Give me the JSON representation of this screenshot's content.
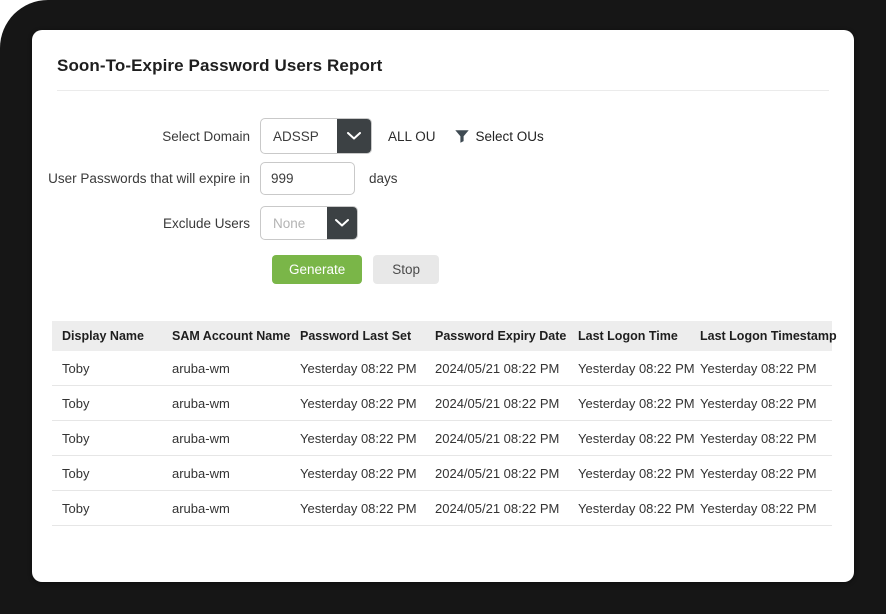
{
  "colors": {
    "frame_bg": "#161616",
    "card_bg": "#ffffff",
    "accent_green": "#7ab648",
    "control_dark": "#3c4144",
    "table_header_bg": "#ededed",
    "border_light": "#c9c9c9",
    "row_divider": "#e6e6e6",
    "placeholder_text": "#b3b3b3"
  },
  "report": {
    "title": "Soon-To-Expire Password Users Report"
  },
  "form": {
    "domain_label": "Select Domain",
    "domain_value": "ADSSP",
    "all_ou_label": "ALL OU",
    "select_ous_label": "Select OUs",
    "expire_label": "User Passwords that will expire in",
    "expire_value": "999",
    "expire_suffix": "days",
    "exclude_label": "Exclude Users",
    "exclude_placeholder": "None",
    "generate_label": "Generate",
    "stop_label": "Stop"
  },
  "table": {
    "columns": [
      "Display Name",
      "SAM Account Name",
      "Password Last Set",
      "Password Expiry Date",
      "Last Logon Time",
      "Last Logon Timestamp"
    ],
    "rows": [
      [
        "Toby",
        "aruba-wm",
        "Yesterday 08:22 PM",
        "2024/05/21 08:22 PM",
        "Yesterday 08:22 PM",
        "Yesterday 08:22 PM"
      ],
      [
        "Toby",
        "aruba-wm",
        "Yesterday 08:22 PM",
        "2024/05/21 08:22 PM",
        "Yesterday 08:22 PM",
        "Yesterday 08:22 PM"
      ],
      [
        "Toby",
        "aruba-wm",
        "Yesterday 08:22 PM",
        "2024/05/21 08:22 PM",
        "Yesterday 08:22 PM",
        "Yesterday 08:22 PM"
      ],
      [
        "Toby",
        "aruba-wm",
        "Yesterday 08:22 PM",
        "2024/05/21 08:22 PM",
        "Yesterday 08:22 PM",
        "Yesterday 08:22 PM"
      ],
      [
        "Toby",
        "aruba-wm",
        "Yesterday 08:22 PM",
        "2024/05/21 08:22 PM",
        "Yesterday 08:22 PM",
        "Yesterday 08:22 PM"
      ]
    ]
  }
}
